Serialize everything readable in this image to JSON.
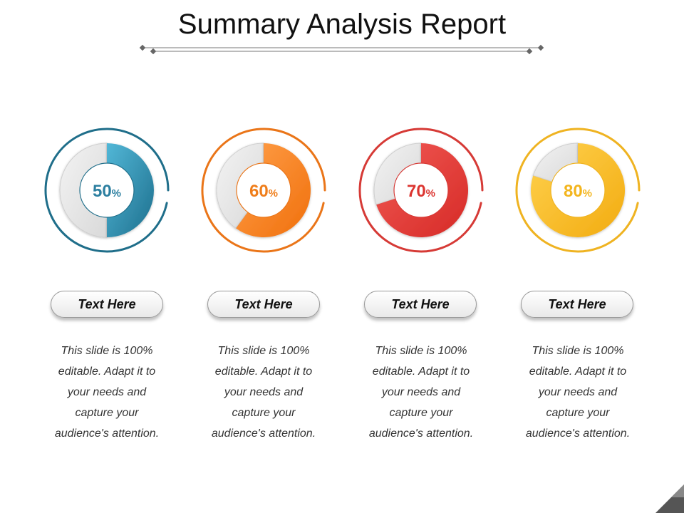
{
  "title": "Summary Analysis Report",
  "chart_data": [
    {
      "type": "pie",
      "values": [
        50,
        50
      ],
      "label_number": "50",
      "label_unit": "%",
      "color": "#2c7fa0",
      "gradient": [
        "#52b7d7",
        "#1d6f8d"
      ],
      "ring_color": "#1f6e8a"
    },
    {
      "type": "pie",
      "values": [
        60,
        40
      ],
      "label_number": "60",
      "label_unit": "%",
      "color": "#ef7d1a",
      "gradient": [
        "#ffa04a",
        "#f06f0c"
      ],
      "ring_color": "#ea7518"
    },
    {
      "type": "pie",
      "values": [
        70,
        30
      ],
      "label_number": "70",
      "label_unit": "%",
      "color": "#dc3530",
      "gradient": [
        "#f15a55",
        "#d62a26"
      ],
      "ring_color": "#d63a36"
    },
    {
      "type": "pie",
      "values": [
        80,
        20
      ],
      "label_number": "80",
      "label_unit": "%",
      "color": "#f3b51d",
      "gradient": [
        "#ffd24f",
        "#f2ab10"
      ],
      "ring_color": "#efb321"
    }
  ],
  "cards": [
    {
      "label": "Text Here",
      "desc": [
        "This slide is 100%",
        "editable. Adapt it to",
        "your needs and",
        "capture your",
        "audience's attention."
      ]
    },
    {
      "label": "Text Here",
      "desc": [
        "This slide is 100%",
        "editable. Adapt it to",
        "your needs and",
        "capture your",
        "audience's attention."
      ]
    },
    {
      "label": "Text Here",
      "desc": [
        "This slide is 100%",
        "editable. Adapt it to",
        "your needs and",
        "capture your",
        "audience's attention."
      ]
    },
    {
      "label": "Text Here",
      "desc": [
        "This slide is 100%",
        "editable. Adapt it to",
        "your needs and",
        "capture your",
        "audience's attention."
      ]
    }
  ]
}
